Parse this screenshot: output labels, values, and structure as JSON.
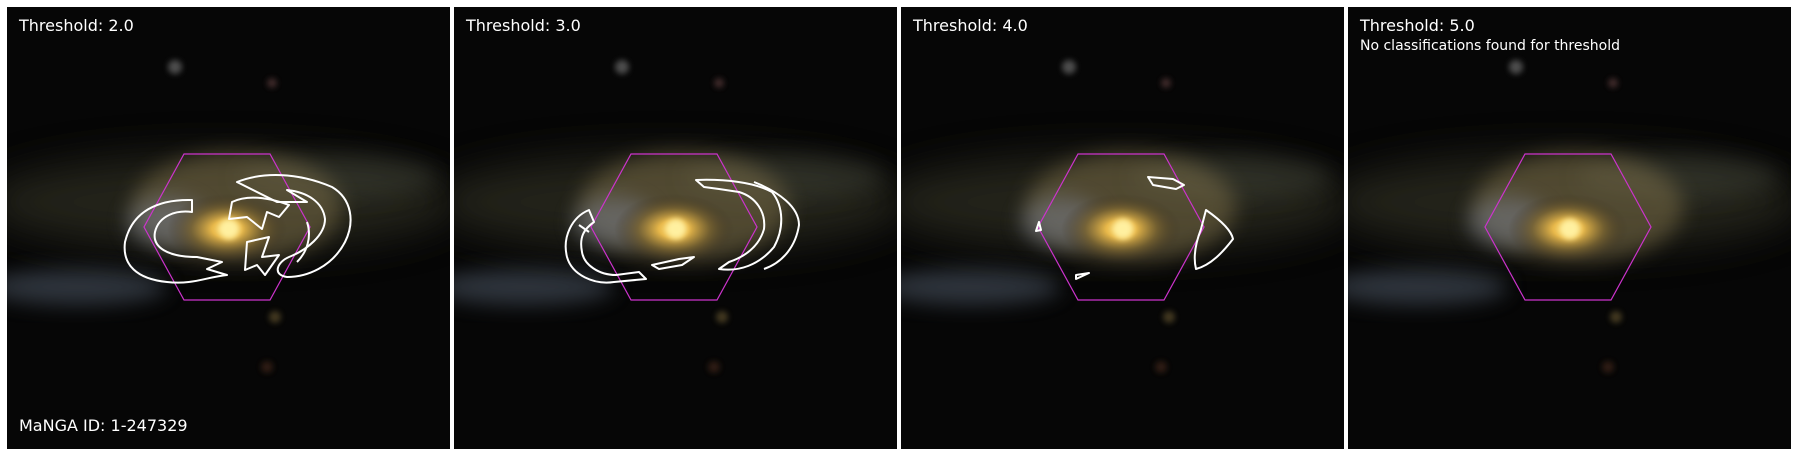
{
  "manga_id_label": "MaNGA ID: 1-247329",
  "panels": [
    {
      "threshold_label": "Threshold: 2.0"
    },
    {
      "threshold_label": "Threshold: 3.0"
    },
    {
      "threshold_label": "Threshold: 4.0"
    },
    {
      "threshold_label": "Threshold: 5.0",
      "note": "No classifications found for threshold"
    }
  ],
  "colors": {
    "hexagon": "#cc33cc",
    "contour": "#ffffff",
    "label": "#ffffff"
  }
}
